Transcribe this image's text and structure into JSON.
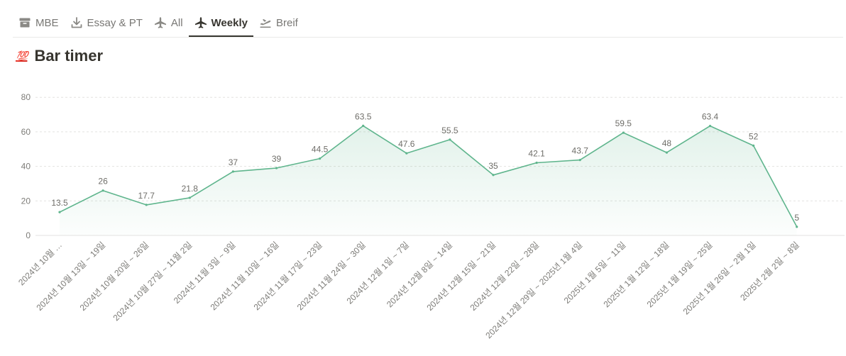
{
  "tabs": [
    {
      "label": "MBE",
      "icon": "archive-box-icon",
      "active": false
    },
    {
      "label": "Essay & PT",
      "icon": "download-icon",
      "active": false
    },
    {
      "label": "All",
      "icon": "airplane-icon",
      "active": false
    },
    {
      "label": "Weekly",
      "icon": "airplane-icon",
      "active": true
    },
    {
      "label": "Breif",
      "icon": "airplane-departure-icon",
      "active": false
    }
  ],
  "page": {
    "emoji": "💯",
    "title": "Bar timer"
  },
  "colors": {
    "line": "#5fb58d",
    "fill": "#e4f3ea",
    "grid": "#e3e2e0"
  },
  "chart_data": {
    "type": "area",
    "categories": [
      "2024년 10월 …",
      "2024년 10월 13일 ~ 19일",
      "2024년 10월 20일 ~ 26일",
      "2024년 10월 27일 ~ 11월 2일",
      "2024년 11월 3일 ~ 9일",
      "2024년 11월 10일 ~ 16일",
      "2024년 11월 17일 ~ 23일",
      "2024년 11월 24일 ~ 30일",
      "2024년 12월 1일 ~ 7일",
      "2024년 12월 8일 ~ 14일",
      "2024년 12월 15일 ~ 21일",
      "2024년 12월 22일 ~ 28일",
      "2024년 12월 29일 ~ 2025년 1월 4일",
      "2025년 1월 5일 ~ 11일",
      "2025년 1월 12일 ~ 18일",
      "2025년 1월 19일 ~ 25일",
      "2025년 1월 26일 ~ 2월 1일",
      "2025년 2월 2일 ~ 8일"
    ],
    "values": [
      13.5,
      26,
      17.7,
      21.8,
      37,
      39,
      44.5,
      63.5,
      47.6,
      55.5,
      35,
      42.1,
      43.7,
      59.5,
      48,
      63.4,
      52,
      5
    ],
    "value_labels": [
      "13.5",
      "26",
      "17.7",
      "21.8",
      "37",
      "39",
      "44.5",
      "63.5",
      "47.6",
      "55.5",
      "35",
      "42.1",
      "43.7",
      "59.5",
      "48",
      "63.4",
      "52",
      "5"
    ],
    "yticks": [
      "0",
      "20",
      "40",
      "60",
      "80"
    ],
    "ylim": [
      0,
      80
    ],
    "grid": true,
    "legend": "none"
  }
}
